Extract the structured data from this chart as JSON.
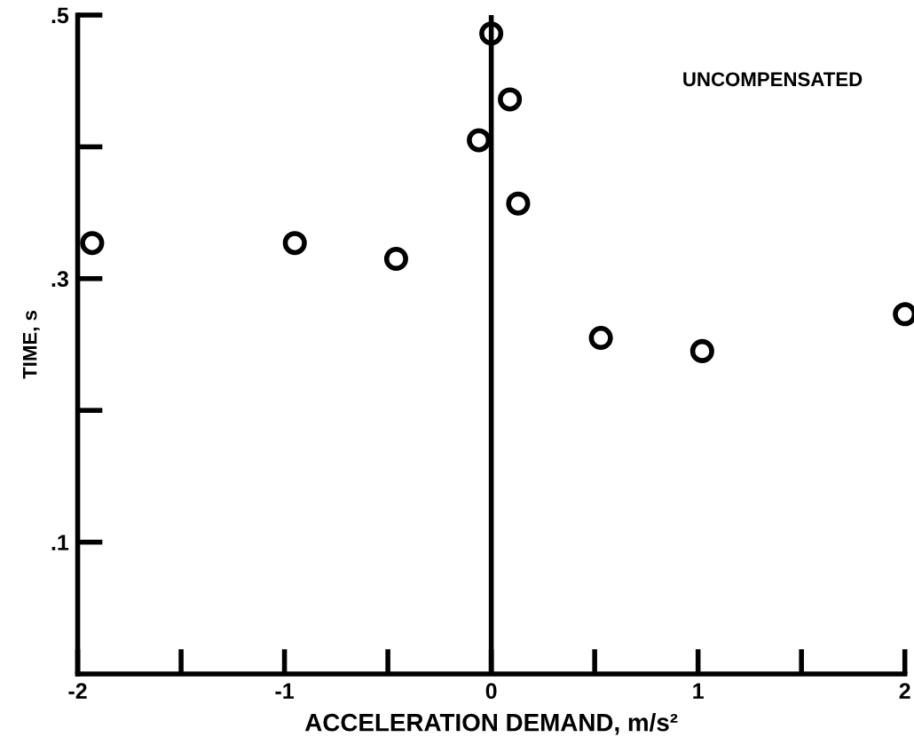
{
  "chart_data": {
    "type": "scatter",
    "xlabel": "ACCELERATION DEMAND, m/s²",
    "ylabel": "TIME, s",
    "annotations": [
      "UNCOMPENSATED"
    ],
    "series": [
      {
        "color": "#000000",
        "x": [
          -1.93,
          -0.95,
          -0.46,
          -0.06,
          0.0,
          0.09,
          0.13,
          0.53,
          1.02,
          2.0
        ],
        "values": [
          0.327,
          0.327,
          0.315,
          0.405,
          0.486,
          0.436,
          0.357,
          0.255,
          0.245,
          0.273
        ]
      }
    ],
    "xlim": [
      -2,
      2
    ],
    "xticks": [
      -2,
      {
        "value": -1.5,
        "label": null
      },
      -1,
      {
        "value": -0.5,
        "label": null
      },
      0,
      {
        "value": 0.5,
        "label": null
      },
      1,
      {
        "value": 1.5,
        "label": null
      },
      2
    ],
    "ylim": [
      0,
      0.5
    ],
    "yticks": [
      {
        "value": 0.1,
        "label": ".1"
      },
      {
        "value": 0.2,
        "label": null
      },
      {
        "value": 0.3,
        "label": ".3"
      },
      {
        "value": 0.4,
        "label": null
      },
      {
        "value": 0.5,
        "label": ".5"
      }
    ],
    "ref_lines": [
      {
        "axis": "x",
        "value": 0,
        "color": "#000000"
      }
    ],
    "marker": "circle",
    "grid": false,
    "legend": false
  }
}
